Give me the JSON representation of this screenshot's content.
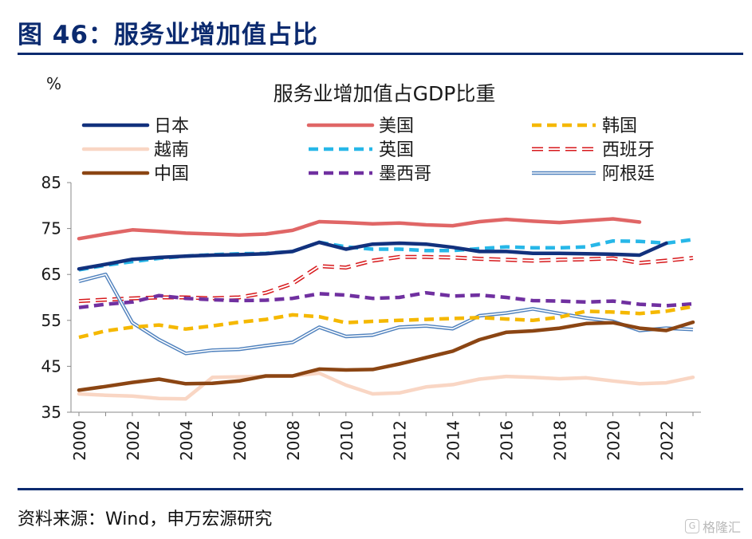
{
  "figure": {
    "title": "图 46：服务业增加值占比",
    "source": "资料来源：Wind，申万宏源研究",
    "watermark": "格隆汇",
    "watermark_mark": "G"
  },
  "chart_data": {
    "type": "line",
    "title": "服务业增加值占GDP比重",
    "ylabel": "%",
    "xlabel": "",
    "ylim": [
      35,
      85
    ],
    "yticks": [
      35,
      45,
      55,
      65,
      75,
      85
    ],
    "xlim": [
      2000,
      2023
    ],
    "xticks": [
      "2000",
      "2002",
      "2004",
      "2006",
      "2008",
      "2010",
      "2012",
      "2014",
      "2016",
      "2018",
      "2020",
      "2022"
    ],
    "x": [
      2000,
      2001,
      2002,
      2003,
      2004,
      2005,
      2006,
      2007,
      2008,
      2009,
      2010,
      2011,
      2012,
      2013,
      2014,
      2015,
      2016,
      2017,
      2018,
      2019,
      2020,
      2021,
      2022,
      2023
    ],
    "series": [
      {
        "name": "日本",
        "color": "#12317d",
        "style": "solid",
        "values": [
          66.2,
          67.2,
          68.3,
          68.7,
          69.0,
          69.2,
          69.3,
          69.5,
          70.0,
          72.0,
          70.5,
          71.6,
          71.8,
          71.6,
          70.9,
          70.0,
          70.0,
          69.6,
          69.6,
          69.5,
          69.4,
          69.2,
          71.8,
          null
        ]
      },
      {
        "name": "美国",
        "color": "#e06666",
        "style": "solid",
        "values": [
          72.8,
          73.8,
          74.7,
          74.4,
          74.0,
          73.8,
          73.6,
          73.8,
          74.6,
          76.5,
          76.3,
          76.0,
          76.2,
          75.8,
          75.6,
          76.5,
          77.0,
          76.6,
          76.3,
          76.7,
          77.1,
          76.4,
          null,
          null
        ]
      },
      {
        "name": "韩国",
        "color": "#f5b800",
        "style": "dashed",
        "values": [
          51.3,
          52.7,
          53.5,
          54.0,
          53.1,
          53.8,
          54.6,
          55.2,
          56.2,
          55.8,
          54.5,
          54.8,
          55.0,
          55.2,
          55.4,
          55.6,
          55.3,
          55.0,
          55.7,
          57.0,
          56.8,
          56.5,
          57.0,
          58.0
        ]
      },
      {
        "name": "越南",
        "color": "#f9d6c4",
        "style": "solid",
        "values": [
          39.0,
          38.7,
          38.5,
          38.0,
          37.9,
          42.6,
          42.7,
          42.8,
          42.9,
          43.5,
          40.9,
          39.0,
          39.2,
          40.5,
          41.0,
          42.2,
          42.8,
          42.6,
          42.3,
          42.5,
          41.8,
          41.2,
          41.4,
          42.6
        ]
      },
      {
        "name": "英国",
        "color": "#27b7e8",
        "style": "dashed",
        "values": [
          66.0,
          67.0,
          67.8,
          68.5,
          69.0,
          69.3,
          69.5,
          69.6,
          70.0,
          72.0,
          71.0,
          70.5,
          70.5,
          70.2,
          70.2,
          70.6,
          71.0,
          70.8,
          70.8,
          71.0,
          72.3,
          72.2,
          71.8,
          72.6
        ]
      },
      {
        "name": "西班牙",
        "color": "#d7191c",
        "style": "outline-dashed",
        "values": [
          59.2,
          59.5,
          59.8,
          60.0,
          60.0,
          59.8,
          60.0,
          61.0,
          63.0,
          66.8,
          66.5,
          68.0,
          68.8,
          68.8,
          68.7,
          68.4,
          68.2,
          68.0,
          68.2,
          68.3,
          68.5,
          67.5,
          68.0,
          68.6
        ]
      },
      {
        "name": "中国",
        "color": "#8b4513",
        "style": "solid",
        "values": [
          39.8,
          40.6,
          41.5,
          42.2,
          41.2,
          41.3,
          41.8,
          42.9,
          42.9,
          44.4,
          44.2,
          44.3,
          45.5,
          46.9,
          48.3,
          50.8,
          52.4,
          52.7,
          53.3,
          54.3,
          54.5,
          53.3,
          52.8,
          54.6
        ]
      },
      {
        "name": "墨西哥",
        "color": "#7030a0",
        "style": "dashed",
        "values": [
          57.8,
          58.5,
          59.0,
          60.4,
          59.8,
          59.5,
          59.3,
          59.4,
          59.8,
          60.8,
          60.5,
          59.8,
          60.0,
          61.0,
          60.3,
          60.5,
          60.0,
          59.3,
          59.2,
          59.0,
          59.2,
          58.5,
          58.2,
          58.6
        ]
      },
      {
        "name": "阿根廷",
        "color": "#4f81bd",
        "style": "double",
        "values": [
          63.5,
          65.0,
          54.5,
          50.8,
          47.8,
          48.5,
          48.7,
          49.5,
          50.2,
          53.5,
          51.5,
          51.8,
          53.5,
          53.8,
          53.2,
          56.0,
          56.6,
          57.5,
          56.5,
          55.5,
          54.8,
          52.8,
          53.3,
          53.0
        ]
      }
    ],
    "legend": {
      "placement": "top",
      "columns": 3
    }
  }
}
